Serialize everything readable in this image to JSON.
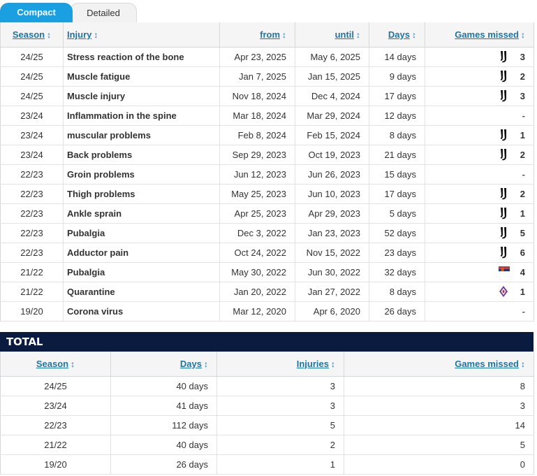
{
  "tabs": [
    {
      "label": "Compact",
      "active": true
    },
    {
      "label": "Detailed",
      "active": false
    }
  ],
  "injury_table": {
    "headers": {
      "season": "Season",
      "injury": "Injury",
      "from": "from",
      "until": "until",
      "days": "Days",
      "games_missed": "Games missed"
    },
    "sort_icon": "↕",
    "rows": [
      {
        "season": "24/25",
        "injury": "Stress reaction of the bone",
        "from": "Apr 23, 2025",
        "until": "May 6, 2025",
        "days": "14 days",
        "club": "juventus-logo-icon",
        "games": "3"
      },
      {
        "season": "24/25",
        "injury": "Muscle fatigue",
        "from": "Jan 7, 2025",
        "until": "Jan 15, 2025",
        "days": "9 days",
        "club": "juventus-logo-icon",
        "games": "2"
      },
      {
        "season": "24/25",
        "injury": "Muscle injury",
        "from": "Nov 18, 2024",
        "until": "Dec 4, 2024",
        "days": "17 days",
        "club": "juventus-logo-icon",
        "games": "3"
      },
      {
        "season": "23/24",
        "injury": "Inflammation in the spine",
        "from": "Mar 18, 2024",
        "until": "Mar 29, 2024",
        "days": "12 days",
        "club": "",
        "games": "-"
      },
      {
        "season": "23/24",
        "injury": "muscular problems",
        "from": "Feb 8, 2024",
        "until": "Feb 15, 2024",
        "days": "8 days",
        "club": "juventus-logo-icon",
        "games": "1"
      },
      {
        "season": "23/24",
        "injury": "Back problems",
        "from": "Sep 29, 2023",
        "until": "Oct 19, 2023",
        "days": "21 days",
        "club": "juventus-logo-icon",
        "games": "2"
      },
      {
        "season": "22/23",
        "injury": "Groin problems",
        "from": "Jun 12, 2023",
        "until": "Jun 26, 2023",
        "days": "15 days",
        "club": "",
        "games": "-"
      },
      {
        "season": "22/23",
        "injury": "Thigh problems",
        "from": "May 25, 2023",
        "until": "Jun 10, 2023",
        "days": "17 days",
        "club": "juventus-logo-icon",
        "games": "2"
      },
      {
        "season": "22/23",
        "injury": "Ankle sprain",
        "from": "Apr 25, 2023",
        "until": "Apr 29, 2023",
        "days": "5 days",
        "club": "juventus-logo-icon",
        "games": "1"
      },
      {
        "season": "22/23",
        "injury": "Pubalgia",
        "from": "Dec 3, 2022",
        "until": "Jan 23, 2023",
        "days": "52 days",
        "club": "juventus-logo-icon",
        "games": "5"
      },
      {
        "season": "22/23",
        "injury": "Adductor pain",
        "from": "Oct 24, 2022",
        "until": "Nov 15, 2022",
        "days": "23 days",
        "club": "juventus-logo-icon",
        "games": "6"
      },
      {
        "season": "21/22",
        "injury": "Pubalgia",
        "from": "May 30, 2022",
        "until": "Jun 30, 2022",
        "days": "32 days",
        "club": "serbia-flag-icon",
        "games": "4"
      },
      {
        "season": "21/22",
        "injury": "Quarantine",
        "from": "Jan 20, 2022",
        "until": "Jan 27, 2022",
        "days": "8 days",
        "club": "fiorentina-logo-icon",
        "games": "1"
      },
      {
        "season": "19/20",
        "injury": "Corona virus",
        "from": "Mar 12, 2020",
        "until": "Apr 6, 2020",
        "days": "26 days",
        "club": "",
        "games": "-"
      }
    ]
  },
  "total": {
    "title": "TOTAL",
    "headers": {
      "season": "Season",
      "days": "Days",
      "injuries": "Injuries",
      "games_missed": "Games missed"
    },
    "rows": [
      {
        "season": "24/25",
        "days": "40 days",
        "injuries": "3",
        "games": "8"
      },
      {
        "season": "23/24",
        "days": "41 days",
        "injuries": "3",
        "games": "3"
      },
      {
        "season": "22/23",
        "days": "112 days",
        "injuries": "5",
        "games": "14"
      },
      {
        "season": "21/22",
        "days": "40 days",
        "injuries": "2",
        "games": "5"
      },
      {
        "season": "19/20",
        "days": "26 days",
        "injuries": "1",
        "games": "0"
      }
    ]
  },
  "colors": {
    "tab_active": "#1a9fe0",
    "header_link": "#1d75a3",
    "total_bar": "#0b1b3f"
  }
}
